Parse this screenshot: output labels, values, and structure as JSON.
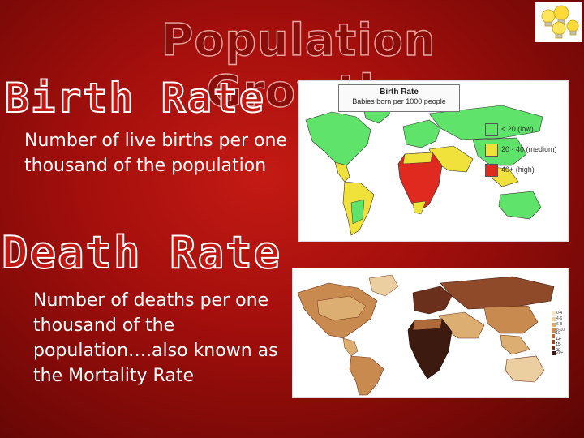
{
  "slide": {
    "title": "Population Growth",
    "birth_heading": "Birth Rate",
    "birth_text": "Number of live births per one thousand of the population",
    "death_heading": "Death Rate",
    "death_text": "Number of deaths per one thousand of the population….also known as the Mortality Rate"
  },
  "birth_map": {
    "legend_title": "Birth Rate",
    "legend_subtitle": "Babies born per 1000 people",
    "legend": [
      {
        "label": "< 20 (low)",
        "color": "#5fe36a"
      },
      {
        "label": "20 - 40 (medium)",
        "color": "#f0e23a"
      },
      {
        "label": "40+ (high)",
        "color": "#e02a1f"
      }
    ]
  },
  "death_map": {
    "legend": [
      "0-4",
      "4-6",
      "6-8",
      "8-10",
      "10-12",
      "12-15",
      "15-20",
      "20+"
    ],
    "legend_colors": [
      "#f6e6c8",
      "#eccfa0",
      "#dcae72",
      "#c98a4f",
      "#ae6a3a",
      "#8f4a2a",
      "#6b301b",
      "#3c1a10"
    ]
  },
  "colors": {
    "background": "#a30f0c",
    "heading_fill": "#c11812",
    "text": "#ffffff"
  }
}
